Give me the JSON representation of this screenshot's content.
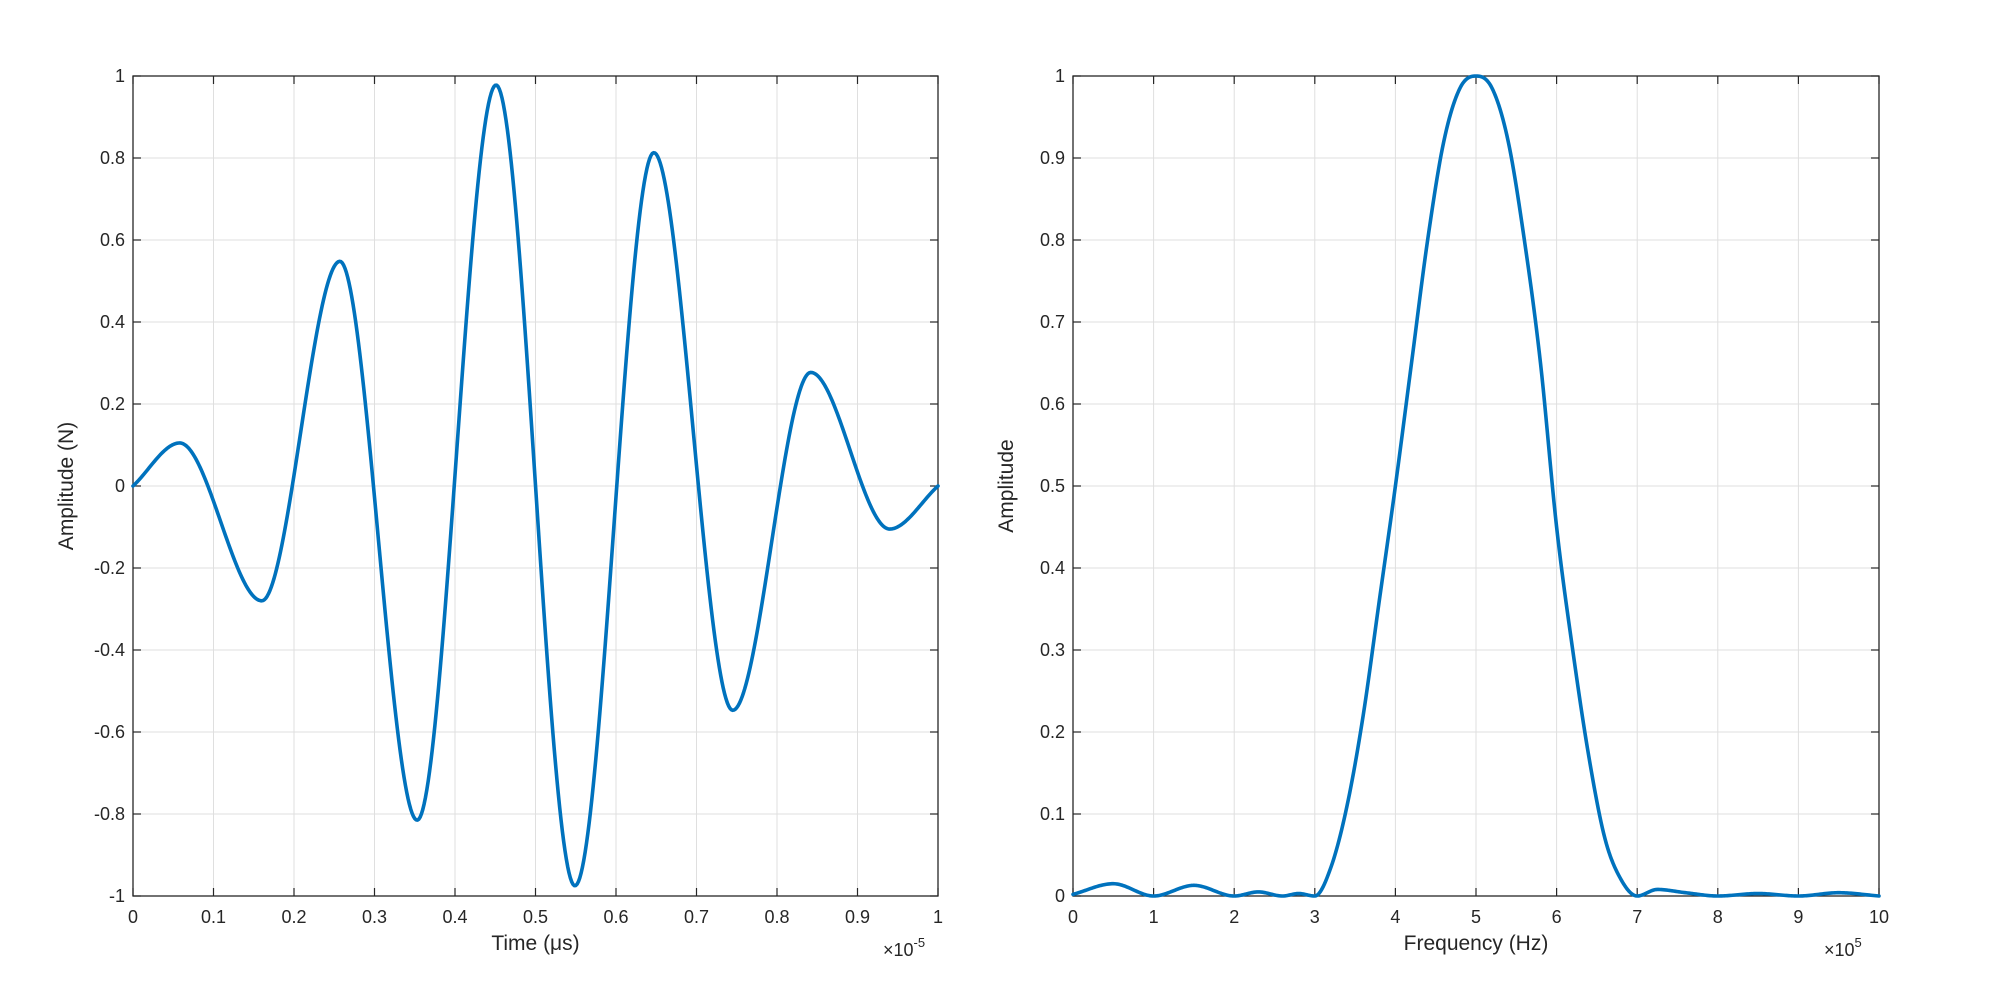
{
  "chart_data": [
    {
      "type": "line",
      "xlabel": "Time (μs)",
      "ylabel": "Amplitude (N)",
      "x_exponent": {
        "base": "×10",
        "power": "-5"
      },
      "xlim": [
        0,
        1
      ],
      "ylim": [
        -1,
        1
      ],
      "grid": true,
      "xticks": [
        0,
        0.1,
        0.2,
        0.3,
        0.4,
        0.5,
        0.6,
        0.7,
        0.8,
        0.9,
        1
      ],
      "xtick_labels": [
        "0",
        "0.1",
        "0.2",
        "0.3",
        "0.4",
        "0.5",
        "0.6",
        "0.7",
        "0.8",
        "0.9",
        "1"
      ],
      "yticks": [
        -1,
        -0.8,
        -0.6,
        -0.4,
        -0.2,
        0,
        0.2,
        0.4,
        0.6,
        0.8,
        1
      ],
      "ytick_labels": [
        "-1",
        "-0.8",
        "-0.6",
        "-0.4",
        "-0.2",
        "0",
        "0.2",
        "0.4",
        "0.6",
        "0.8",
        "1"
      ],
      "line_color": "#0072BD",
      "series": [
        {
          "x": [
            0,
            0.058,
            0.16,
            0.257,
            0.353,
            0.451,
            0.549,
            0.647,
            0.745,
            0.842,
            0.94,
            1.0
          ],
          "y": [
            0,
            0.105,
            -0.28,
            0.548,
            -0.815,
            0.978,
            -0.975,
            0.813,
            -0.547,
            0.277,
            -0.105,
            0
          ]
        }
      ]
    },
    {
      "type": "line",
      "xlabel": "Frequency (Hz)",
      "ylabel": "Amplitude",
      "x_exponent": {
        "base": "×10",
        "power": "5"
      },
      "xlim": [
        0,
        10
      ],
      "ylim": [
        0,
        1
      ],
      "grid": true,
      "xticks": [
        0,
        1,
        2,
        3,
        4,
        5,
        6,
        7,
        8,
        9,
        10
      ],
      "xtick_labels": [
        "0",
        "1",
        "2",
        "3",
        "4",
        "5",
        "6",
        "7",
        "8",
        "9",
        "10"
      ],
      "yticks": [
        0,
        0.1,
        0.2,
        0.3,
        0.4,
        0.5,
        0.6,
        0.7,
        0.8,
        0.9,
        1
      ],
      "ytick_labels": [
        "0",
        "0.1",
        "0.2",
        "0.3",
        "0.4",
        "0.5",
        "0.6",
        "0.7",
        "0.8",
        "0.9",
        "1"
      ],
      "line_color": "#0072BD",
      "series": [
        {
          "x": [
            0,
            0.5,
            1.0,
            1.5,
            2.0,
            2.3,
            2.6,
            2.8,
            3.0,
            3.2,
            3.4,
            3.6,
            3.8,
            4.0,
            4.2,
            4.4,
            4.6,
            4.8,
            5.0,
            5.2,
            5.4,
            5.6,
            5.8,
            6.0,
            6.2,
            6.4,
            6.6,
            6.8,
            7.0,
            7.25,
            7.6,
            8.0,
            8.5,
            9.0,
            9.5,
            10.0
          ],
          "y": [
            0.002,
            0.015,
            0.0,
            0.013,
            0.0,
            0.005,
            0.0,
            0.003,
            0.0,
            0.035,
            0.11,
            0.22,
            0.36,
            0.5,
            0.65,
            0.8,
            0.92,
            0.985,
            1.0,
            0.985,
            0.92,
            0.8,
            0.65,
            0.45,
            0.3,
            0.17,
            0.07,
            0.02,
            0.0,
            0.008,
            0.004,
            0.0,
            0.003,
            0.0,
            0.004,
            0.0
          ]
        }
      ]
    }
  ]
}
